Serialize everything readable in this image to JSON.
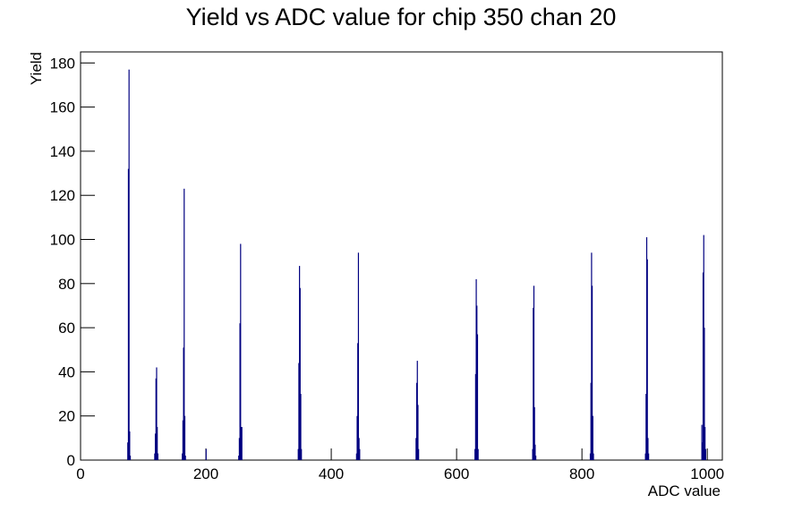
{
  "chart_data": {
    "type": "bar",
    "title": "Yield vs ADC value for chip 350 chan 20",
    "x_label": "ADC value",
    "y_label": "Yield",
    "color": "#000080",
    "x": [
      75,
      76,
      77,
      78,
      79,
      118,
      119,
      120,
      121,
      122,
      123,
      162,
      163,
      164,
      165,
      166,
      167,
      200,
      252,
      253,
      254,
      255,
      256,
      257,
      347,
      348,
      349,
      350,
      351,
      352,
      440,
      441,
      442,
      443,
      444,
      445,
      535,
      536,
      537,
      538,
      539,
      629,
      630,
      631,
      632,
      633,
      634,
      721,
      722,
      723,
      724,
      725,
      726,
      813,
      814,
      815,
      816,
      817,
      818,
      901,
      902,
      903,
      904,
      905,
      906,
      991,
      992,
      993,
      994,
      995,
      996,
      997
    ],
    "values": [
      8,
      132,
      177,
      13,
      2,
      3,
      12,
      37,
      42,
      15,
      3,
      3,
      18,
      51,
      123,
      20,
      2,
      5,
      2,
      10,
      62,
      98,
      15,
      15,
      5,
      44,
      88,
      78,
      30,
      5,
      3,
      20,
      53,
      94,
      10,
      5,
      10,
      35,
      45,
      25,
      5,
      5,
      39,
      82,
      70,
      57,
      5,
      5,
      69,
      79,
      24,
      7,
      2,
      3,
      35,
      94,
      79,
      20,
      3,
      3,
      30,
      101,
      91,
      10,
      3,
      16,
      8,
      85,
      102,
      60,
      15,
      5
    ],
    "xlim": [
      0,
      1024
    ],
    "xticks": [
      0,
      200,
      400,
      600,
      800,
      1000
    ],
    "ylim": [
      0,
      185
    ],
    "yticks": [
      0,
      20,
      40,
      60,
      80,
      100,
      120,
      140,
      160,
      180
    ]
  }
}
